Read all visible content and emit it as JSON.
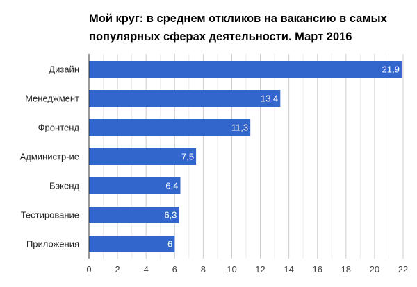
{
  "chart_data": {
    "type": "bar",
    "orientation": "horizontal",
    "title": [
      "Мой круг: в среднем откликов на вакансию в самых",
      "популярных сферах деятельности. Март 2016"
    ],
    "categories": [
      "Дизайн",
      "Менеджмент",
      "Фронтенд",
      "Администр-ие",
      "Бэкенд",
      "Тестирование",
      "Приложения"
    ],
    "values": [
      21.9,
      13.4,
      11.3,
      7.5,
      6.4,
      6.3,
      6
    ],
    "data_labels": [
      "21,9",
      "13,4",
      "11,3",
      "7,5",
      "6,4",
      "6,3",
      "6"
    ],
    "xlim": [
      0,
      22
    ],
    "xticks": [
      "0",
      "2",
      "4",
      "6",
      "8",
      "10",
      "12",
      "14",
      "16",
      "18",
      "20",
      "22"
    ],
    "grid": true,
    "minor_grid": true,
    "bar_color": "#3366cc",
    "xlabel": "",
    "ylabel": ""
  }
}
